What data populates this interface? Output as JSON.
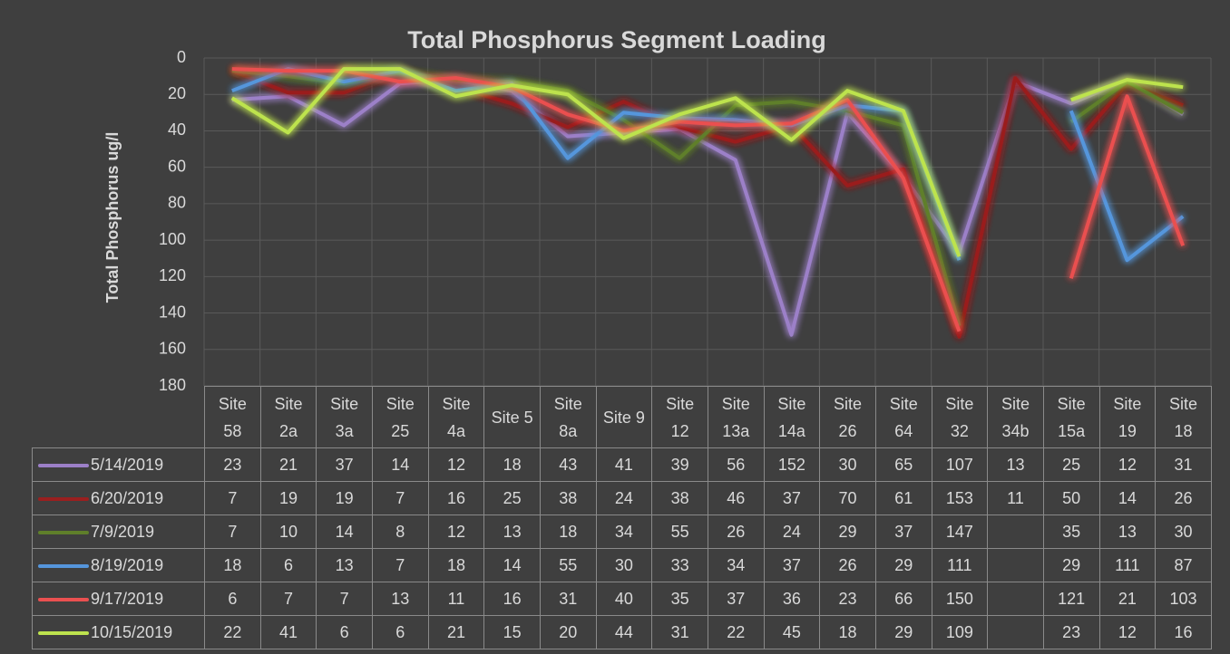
{
  "chart_data": {
    "type": "line",
    "title": "Total Phosphorus Segment Loading",
    "y_label": "Total Phosphorus ug/l",
    "categories": [
      "Site 58",
      "Site 2a",
      "Site 3a",
      "Site 25",
      "Site 4a",
      "Site 5",
      "Site 8a",
      "Site 9",
      "Site 12",
      "Site 13a",
      "Site 14a",
      "Site 26",
      "Site 64",
      "Site 32",
      "Site 34b",
      "Site 15a",
      "Site 19",
      "Site 18"
    ],
    "series": [
      {
        "name": "5/14/2019",
        "color": "#9c80c8",
        "values": [
          23,
          21,
          37,
          14,
          12,
          18,
          43,
          41,
          39,
          56,
          152,
          30,
          65,
          107,
          13,
          25,
          12,
          31
        ]
      },
      {
        "name": "6/20/2019",
        "color": "#9a1f1f",
        "values": [
          7,
          19,
          19,
          7,
          16,
          25,
          38,
          24,
          38,
          46,
          37,
          70,
          61,
          153,
          11,
          50,
          14,
          26
        ]
      },
      {
        "name": "7/9/2019",
        "color": "#5f7f2a",
        "values": [
          7,
          10,
          14,
          8,
          12,
          13,
          18,
          34,
          55,
          26,
          24,
          29,
          37,
          147,
          null,
          35,
          13,
          30
        ]
      },
      {
        "name": "8/19/2019",
        "color": "#5596dc",
        "values": [
          18,
          6,
          13,
          7,
          18,
          14,
          55,
          30,
          33,
          34,
          37,
          26,
          29,
          111,
          null,
          29,
          111,
          87
        ]
      },
      {
        "name": "9/17/2019",
        "color": "#ea5050",
        "values": [
          6,
          7,
          7,
          13,
          11,
          16,
          31,
          40,
          35,
          37,
          36,
          23,
          66,
          150,
          null,
          121,
          21,
          103
        ]
      },
      {
        "name": "10/15/2019",
        "color": "#bde34e",
        "values": [
          22,
          41,
          6,
          6,
          21,
          15,
          20,
          44,
          31,
          22,
          45,
          18,
          29,
          109,
          null,
          23,
          12,
          16
        ]
      }
    ],
    "ylim": [
      0,
      180
    ],
    "yticks": [
      0,
      20,
      40,
      60,
      80,
      100,
      120,
      140,
      160,
      180
    ],
    "y_reversed": true,
    "grid": true
  }
}
